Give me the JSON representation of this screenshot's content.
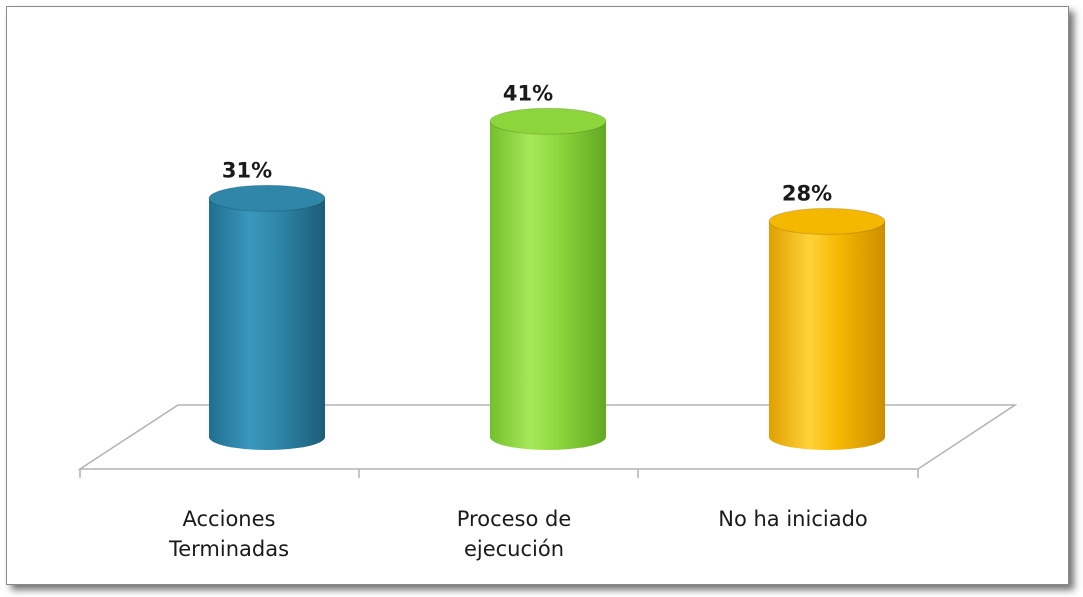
{
  "chart_data": {
    "type": "bar",
    "style": "3d-cylinder",
    "categories": [
      [
        "Acciones",
        "Terminadas"
      ],
      [
        "Proceso de",
        "ejecución"
      ],
      [
        "No ha iniciado"
      ]
    ],
    "values": [
      31,
      41,
      28
    ],
    "value_labels": [
      "31%",
      "41%",
      "28%"
    ],
    "colors": [
      "#2f86a8",
      "#8cd63c",
      "#f5b800"
    ],
    "title": "",
    "xlabel": "",
    "ylabel": "",
    "legend": "none",
    "grid": false,
    "ylim": [
      0,
      45
    ]
  }
}
